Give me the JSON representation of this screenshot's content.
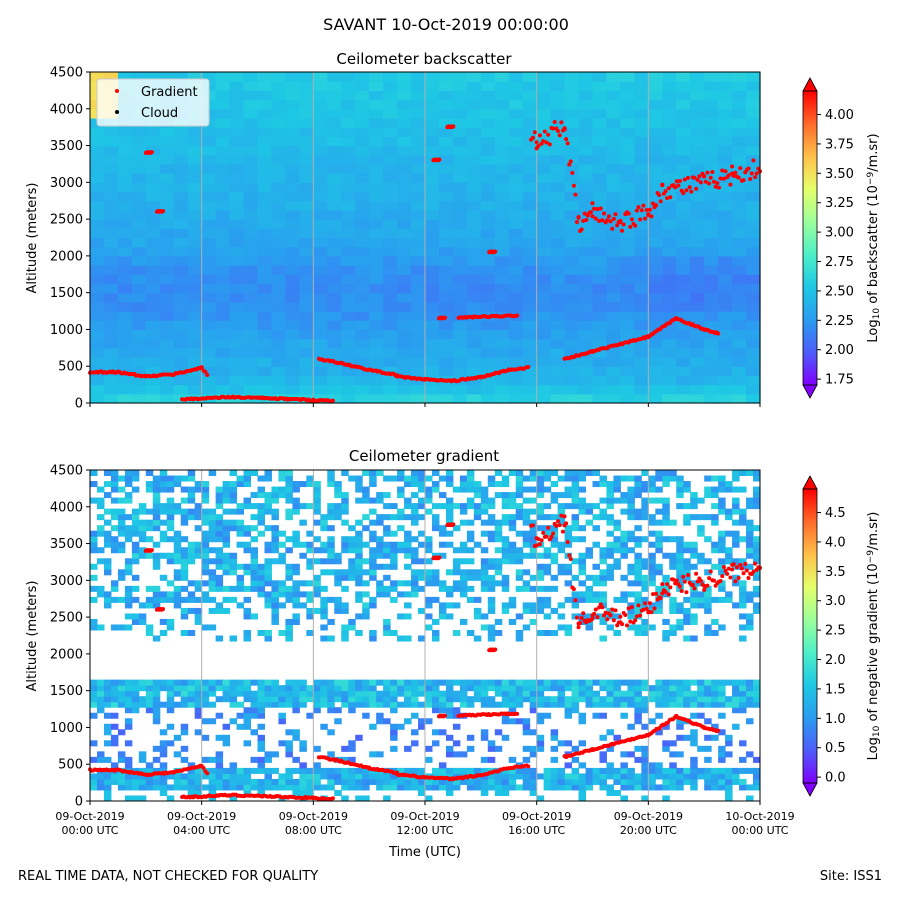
{
  "suptitle": "SAVANT 10-Oct-2019 00:00:00",
  "footer": {
    "left": "REAL TIME DATA, NOT CHECKED FOR QUALITY",
    "right": "Site: ISS1"
  },
  "colors": {
    "gradient_marker": "#ff0000",
    "cloud_marker": "#000000",
    "colormap": [
      "#7f00ff",
      "#4d5dfa",
      "#2a9cf0",
      "#1ec8e4",
      "#4ef0c8",
      "#9cff9a",
      "#e6ff6a",
      "#ffc04a",
      "#ff6a2a",
      "#ff0000"
    ]
  },
  "chart_data": [
    {
      "type": "heatmap",
      "title": "Ceilometer backscatter",
      "xlabel": "",
      "ylabel": "Altitude (meters)",
      "ylim": [
        0,
        4500
      ],
      "yticks": [
        "0",
        "500",
        "1000",
        "1500",
        "2000",
        "2500",
        "3000",
        "3500",
        "4000",
        "4500"
      ],
      "xlim_hours": [
        0,
        24
      ],
      "colorbar": {
        "label": "Log10 of backscatter (10^-9/m.sr)",
        "label_parts": [
          "Log",
          "10",
          " of backscatter (10",
          "−9",
          "/m.sr)"
        ],
        "range": [
          1.7,
          4.2
        ],
        "ticks": [
          "1.75",
          "2.00",
          "2.25",
          "2.50",
          "2.75",
          "3.00",
          "3.25",
          "3.50",
          "3.75",
          "4.00"
        ]
      },
      "legend": {
        "placement": "upper-left",
        "entries": [
          "Gradient",
          "Cloud"
        ]
      },
      "background_level_profile": [
        [
          0,
          2.65
        ],
        [
          100,
          2.55
        ],
        [
          300,
          2.42
        ],
        [
          600,
          2.35
        ],
        [
          900,
          2.3
        ],
        [
          1200,
          2.22
        ],
        [
          1500,
          2.18
        ],
        [
          1800,
          2.22
        ],
        [
          2200,
          2.32
        ],
        [
          2700,
          2.38
        ],
        [
          3200,
          2.42
        ],
        [
          3700,
          2.48
        ],
        [
          4200,
          2.52
        ],
        [
          4500,
          2.55
        ]
      ]
    },
    {
      "type": "heatmap",
      "title": "Ceilometer gradient",
      "xlabel": "Time (UTC)",
      "ylabel": "Altitude (meters)",
      "ylim": [
        0,
        4500
      ],
      "yticks": [
        "0",
        "500",
        "1000",
        "1500",
        "2000",
        "2500",
        "3000",
        "3500",
        "4000",
        "4500"
      ],
      "xlim_hours": [
        0,
        24
      ],
      "xticks": [
        {
          "hour": 0,
          "label": [
            "09-Oct-2019",
            "00:00 UTC"
          ]
        },
        {
          "hour": 4,
          "label": [
            "09-Oct-2019",
            "04:00 UTC"
          ]
        },
        {
          "hour": 8,
          "label": [
            "09-Oct-2019",
            "08:00 UTC"
          ]
        },
        {
          "hour": 12,
          "label": [
            "09-Oct-2019",
            "12:00 UTC"
          ]
        },
        {
          "hour": 16,
          "label": [
            "09-Oct-2019",
            "16:00 UTC"
          ]
        },
        {
          "hour": 20,
          "label": [
            "09-Oct-2019",
            "20:00 UTC"
          ]
        },
        {
          "hour": 24,
          "label": [
            "10-Oct-2019",
            "00:00 UTC"
          ]
        }
      ],
      "colorbar": {
        "label": "Log10 of negative gradient (10^-9/m.sr)",
        "label_parts": [
          "Log",
          "10",
          " of negative gradient (10",
          "−9",
          "/m.sr)"
        ],
        "range": [
          -0.1,
          4.9
        ],
        "ticks": [
          "0.0",
          "0.5",
          "1.0",
          "1.5",
          "2.0",
          "2.5",
          "3.0",
          "3.5",
          "4.0",
          "4.5"
        ]
      },
      "bands": [
        {
          "t0": 0,
          "t1": 24,
          "alt_low": 170,
          "alt_high": 420,
          "level": 1.3
        },
        {
          "t0": 0,
          "t1": 24,
          "alt_low": 1250,
          "alt_high": 1650,
          "level": 1.4
        },
        {
          "t0": 0,
          "t1": 24,
          "alt_low": 2200,
          "alt_high": 4500,
          "level": 1.3
        }
      ]
    }
  ],
  "gradient_points": [
    {
      "segment": "morning-boundary-layer",
      "points": [
        [
          0,
          420
        ],
        [
          1,
          420
        ],
        [
          2,
          360
        ],
        [
          3,
          390
        ],
        [
          4,
          480
        ],
        [
          4.2,
          380
        ]
      ]
    },
    {
      "segment": "night-surface-layer",
      "points": [
        [
          3.3,
          50
        ],
        [
          5,
          80
        ],
        [
          6,
          70
        ],
        [
          8,
          40
        ],
        [
          8.7,
          30
        ]
      ]
    },
    {
      "segment": "late-morning-boundary-layer",
      "points": [
        [
          8.2,
          600
        ],
        [
          9,
          540
        ],
        [
          10,
          450
        ],
        [
          11,
          380
        ]
      ]
    },
    {
      "segment": "midday-boundary-layer",
      "points": [
        [
          11,
          360
        ],
        [
          12,
          320
        ],
        [
          13,
          300
        ],
        [
          14,
          350
        ],
        [
          15,
          450
        ],
        [
          15.7,
          480
        ]
      ]
    },
    {
      "segment": "afternoon-elevated-layer",
      "points": [
        [
          13.2,
          1160
        ],
        [
          15.3,
          1190
        ]
      ]
    },
    {
      "segment": "evening-rising-layer",
      "points": [
        [
          17,
          600
        ],
        [
          18,
          700
        ],
        [
          19,
          800
        ],
        [
          20,
          900
        ],
        [
          21,
          1150
        ],
        [
          22,
          1000
        ],
        [
          22.5,
          950
        ]
      ]
    },
    {
      "segment": "upper-cloud-layer",
      "points": [
        [
          15.8,
          3700
        ],
        [
          16,
          3500
        ],
        [
          17,
          3800
        ],
        [
          17.5,
          2400
        ],
        [
          18,
          2600
        ],
        [
          19,
          2450
        ],
        [
          20,
          2600
        ],
        [
          20.5,
          2900
        ],
        [
          22,
          3000
        ],
        [
          23,
          3100
        ],
        [
          24,
          3200
        ]
      ]
    },
    {
      "segment": "isolated-returns",
      "points": [
        [
          2,
          3400
        ],
        [
          2.4,
          2600
        ],
        [
          12.3,
          3300
        ],
        [
          12.8,
          3750
        ],
        [
          14.3,
          2050
        ],
        [
          12.5,
          1150
        ]
      ]
    }
  ]
}
